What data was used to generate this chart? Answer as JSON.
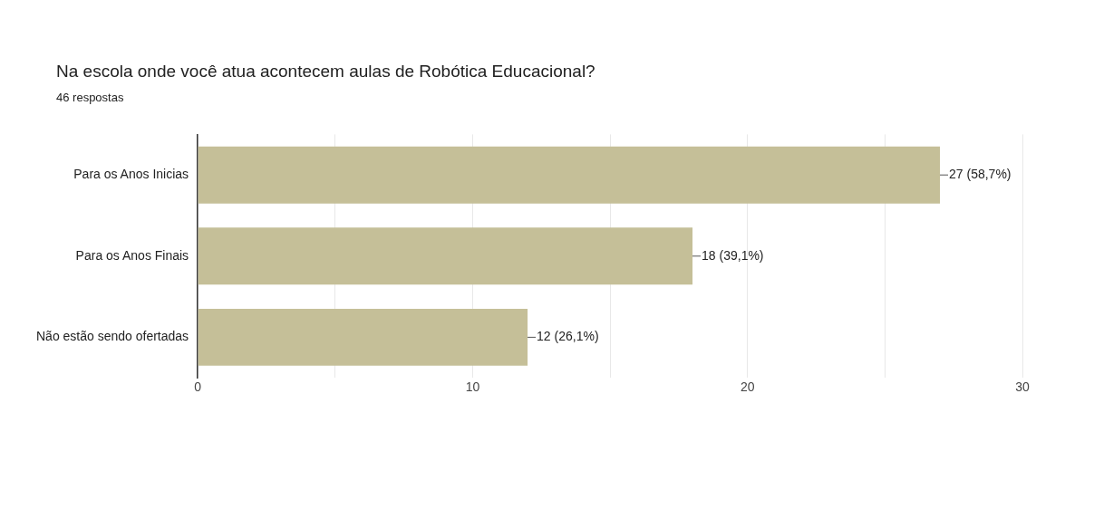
{
  "chart_data": {
    "type": "bar",
    "orientation": "horizontal",
    "title": "Na escola onde você atua acontecem aulas de Robótica Educacional?",
    "subtitle": "46 respostas",
    "categories": [
      "Para os Anos Inicias",
      "Para os Anos Finais",
      "Não estão sendo ofertadas"
    ],
    "values": [
      27,
      18,
      12
    ],
    "color": "#c5bf98",
    "value_labels": [
      "27 (58,7%)",
      "18 (39,1%)",
      "12 (26,1%)"
    ],
    "xlim": [
      0,
      30
    ],
    "xticks": [
      0,
      {
        "value": 5,
        "label": null
      },
      10,
      {
        "value": 15,
        "label": null
      },
      20,
      {
        "value": 25,
        "label": null
      },
      30
    ],
    "grid": "x",
    "legend": false
  }
}
